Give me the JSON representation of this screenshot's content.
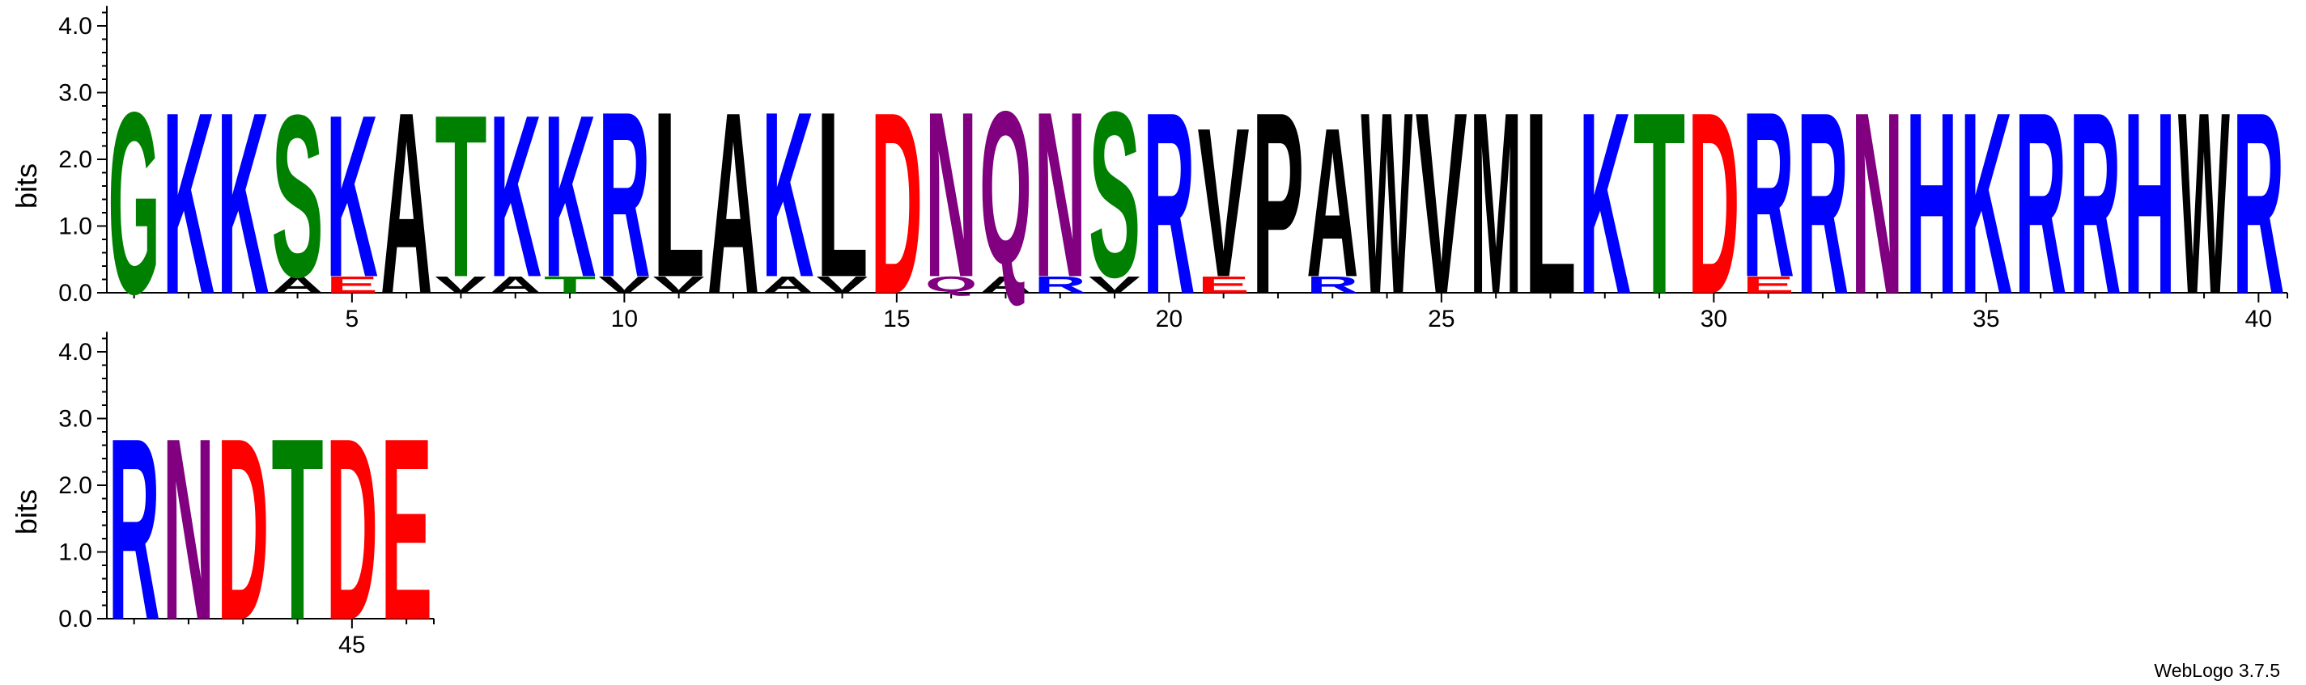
{
  "chart_data": {
    "type": "sequence-logo",
    "ylabel": "bits",
    "ylim": [
      0,
      4.3
    ],
    "yticks": [
      "0.0",
      "1.0",
      "2.0",
      "3.0",
      "4.0"
    ],
    "xticks": [
      5,
      10,
      15,
      20,
      25,
      30,
      35,
      40,
      45
    ],
    "colors": {
      "G": "#008000",
      "S": "#008000",
      "T": "#008000",
      "K": "#0000ff",
      "R": "#0000ff",
      "H": "#0000ff",
      "D": "#ff0000",
      "E": "#ff0000",
      "N": "#800080",
      "Q": "#800080",
      "A": "#000000",
      "L": "#000000",
      "V": "#000000",
      "P": "#000000",
      "W": "#000000",
      "M": "#000000",
      "F": "#000000",
      "I": "#000000"
    },
    "positions": [
      {
        "pos": 1,
        "stack": [
          [
            "G",
            2.8
          ]
        ]
      },
      {
        "pos": 2,
        "stack": [
          [
            "K",
            2.8
          ]
        ]
      },
      {
        "pos": 3,
        "stack": [
          [
            "K",
            2.8
          ]
        ]
      },
      {
        "pos": 4,
        "stack": [
          [
            "A",
            0.25
          ],
          [
            "S",
            2.5
          ]
        ]
      },
      {
        "pos": 5,
        "stack": [
          [
            "E",
            0.25
          ],
          [
            "K",
            2.5
          ]
        ]
      },
      {
        "pos": 6,
        "stack": [
          [
            "A",
            2.8
          ]
        ]
      },
      {
        "pos": 7,
        "stack": [
          [
            "V",
            0.25
          ],
          [
            "T",
            2.5
          ]
        ]
      },
      {
        "pos": 8,
        "stack": [
          [
            "A",
            0.25
          ],
          [
            "K",
            2.5
          ]
        ]
      },
      {
        "pos": 9,
        "stack": [
          [
            "T",
            0.25
          ],
          [
            "K",
            2.5
          ]
        ]
      },
      {
        "pos": 10,
        "stack": [
          [
            "V",
            0.25
          ],
          [
            "R",
            2.55
          ]
        ]
      },
      {
        "pos": 11,
        "stack": [
          [
            "V",
            0.25
          ],
          [
            "L",
            2.55
          ]
        ]
      },
      {
        "pos": 12,
        "stack": [
          [
            "A",
            2.8
          ]
        ]
      },
      {
        "pos": 13,
        "stack": [
          [
            "A",
            0.25
          ],
          [
            "K",
            2.55
          ]
        ]
      },
      {
        "pos": 14,
        "stack": [
          [
            "V",
            0.25
          ],
          [
            "L",
            2.55
          ]
        ]
      },
      {
        "pos": 15,
        "stack": [
          [
            "D",
            2.8
          ]
        ]
      },
      {
        "pos": 16,
        "stack": [
          [
            "Q",
            0.25
          ],
          [
            "N",
            2.55
          ]
        ]
      },
      {
        "pos": 17,
        "stack": [
          [
            "A",
            0.25
          ],
          [
            "Q",
            2.55
          ]
        ]
      },
      {
        "pos": 18,
        "stack": [
          [
            "R",
            0.25
          ],
          [
            "N",
            2.55
          ]
        ]
      },
      {
        "pos": 19,
        "stack": [
          [
            "V",
            0.25
          ],
          [
            "S",
            2.55
          ]
        ]
      },
      {
        "pos": 20,
        "stack": [
          [
            "R",
            2.8
          ]
        ]
      },
      {
        "pos": 21,
        "stack": [
          [
            "E",
            0.25
          ],
          [
            "V",
            2.3
          ]
        ]
      },
      {
        "pos": 22,
        "stack": [
          [
            "P",
            2.8
          ]
        ]
      },
      {
        "pos": 23,
        "stack": [
          [
            "R",
            0.25
          ],
          [
            "A",
            2.3
          ]
        ]
      },
      {
        "pos": 24,
        "stack": [
          [
            "W",
            2.8
          ]
        ]
      },
      {
        "pos": 25,
        "stack": [
          [
            "V",
            2.8
          ]
        ]
      },
      {
        "pos": 26,
        "stack": [
          [
            "M",
            2.8
          ]
        ]
      },
      {
        "pos": 27,
        "stack": [
          [
            "L",
            2.8
          ]
        ]
      },
      {
        "pos": 28,
        "stack": [
          [
            "K",
            2.8
          ]
        ]
      },
      {
        "pos": 29,
        "stack": [
          [
            "T",
            2.8
          ]
        ]
      },
      {
        "pos": 30,
        "stack": [
          [
            "D",
            2.8
          ]
        ]
      },
      {
        "pos": 31,
        "stack": [
          [
            "E",
            0.25
          ],
          [
            "R",
            2.55
          ]
        ]
      },
      {
        "pos": 32,
        "stack": [
          [
            "R",
            2.8
          ]
        ]
      },
      {
        "pos": 33,
        "stack": [
          [
            "N",
            2.8
          ]
        ]
      },
      {
        "pos": 34,
        "stack": [
          [
            "H",
            2.8
          ]
        ]
      },
      {
        "pos": 35,
        "stack": [
          [
            "K",
            2.8
          ]
        ]
      },
      {
        "pos": 36,
        "stack": [
          [
            "R",
            2.8
          ]
        ]
      },
      {
        "pos": 37,
        "stack": [
          [
            "R",
            2.8
          ]
        ]
      },
      {
        "pos": 38,
        "stack": [
          [
            "H",
            2.8
          ]
        ]
      },
      {
        "pos": 39,
        "stack": [
          [
            "W",
            2.8
          ]
        ]
      },
      {
        "pos": 40,
        "stack": [
          [
            "R",
            2.8
          ]
        ]
      },
      {
        "pos": 41,
        "stack": [
          [
            "R",
            2.8
          ]
        ]
      },
      {
        "pos": 42,
        "stack": [
          [
            "N",
            2.8
          ]
        ]
      },
      {
        "pos": 43,
        "stack": [
          [
            "D",
            2.8
          ]
        ]
      },
      {
        "pos": 44,
        "stack": [
          [
            "T",
            2.8
          ]
        ]
      },
      {
        "pos": 45,
        "stack": [
          [
            "D",
            2.8
          ]
        ]
      },
      {
        "pos": 46,
        "stack": [
          [
            "E",
            2.8
          ]
        ]
      }
    ]
  },
  "footer": {
    "credit": "WebLogo 3.7.5"
  }
}
